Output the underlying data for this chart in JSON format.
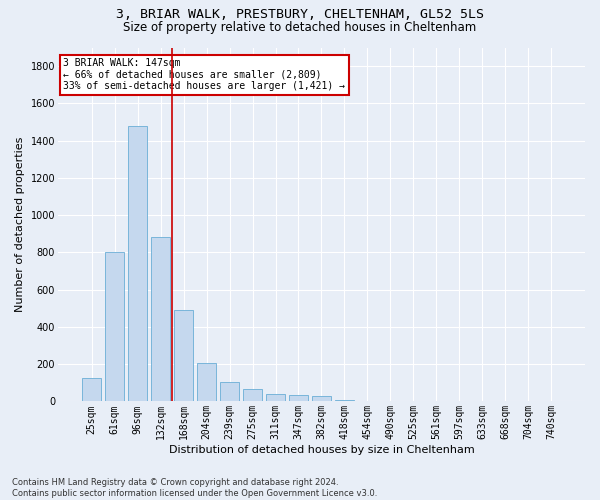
{
  "title1": "3, BRIAR WALK, PRESTBURY, CHELTENHAM, GL52 5LS",
  "title2": "Size of property relative to detached houses in Cheltenham",
  "xlabel": "Distribution of detached houses by size in Cheltenham",
  "ylabel": "Number of detached properties",
  "categories": [
    "25sqm",
    "61sqm",
    "96sqm",
    "132sqm",
    "168sqm",
    "204sqm",
    "239sqm",
    "275sqm",
    "311sqm",
    "347sqm",
    "382sqm",
    "418sqm",
    "454sqm",
    "490sqm",
    "525sqm",
    "561sqm",
    "597sqm",
    "633sqm",
    "668sqm",
    "704sqm",
    "740sqm"
  ],
  "values": [
    125,
    800,
    1480,
    880,
    490,
    205,
    105,
    65,
    40,
    32,
    28,
    10,
    0,
    0,
    0,
    0,
    0,
    0,
    0,
    0,
    0
  ],
  "bar_color": "#c5d8ee",
  "bar_edge_color": "#6aaed6",
  "vline_color": "#cc0000",
  "vline_x": 3.5,
  "annotation_text": "3 BRIAR WALK: 147sqm\n← 66% of detached houses are smaller (2,809)\n33% of semi-detached houses are larger (1,421) →",
  "annotation_box_color": "#ffffff",
  "annotation_box_edge": "#cc0000",
  "ylim": [
    0,
    1900
  ],
  "yticks": [
    0,
    200,
    400,
    600,
    800,
    1000,
    1200,
    1400,
    1600,
    1800
  ],
  "footnote": "Contains HM Land Registry data © Crown copyright and database right 2024.\nContains public sector information licensed under the Open Government Licence v3.0.",
  "background_color": "#e8eef7",
  "plot_background": "#e8eef7",
  "grid_color": "#ffffff",
  "title1_fontsize": 9.5,
  "title2_fontsize": 8.5,
  "tick_fontsize": 7,
  "ylabel_fontsize": 8,
  "xlabel_fontsize": 8,
  "annotation_fontsize": 7,
  "footnote_fontsize": 6
}
